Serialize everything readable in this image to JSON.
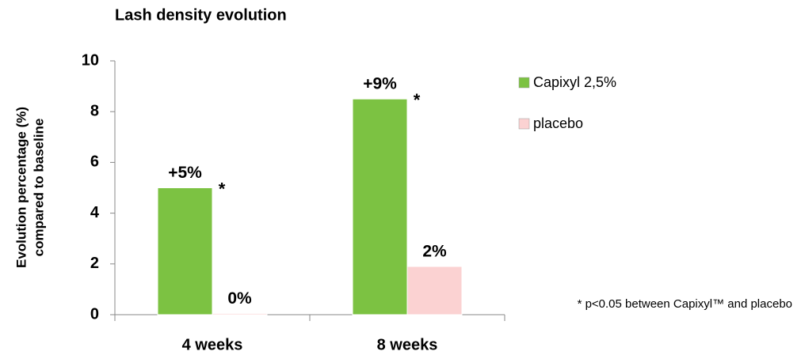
{
  "chart_data": {
    "type": "bar",
    "title": "Lash density evolution",
    "y_label": [
      "Evolution percentage (%)",
      "compared to baseline"
    ],
    "categories": [
      "4 weeks",
      "8 weeks"
    ],
    "series": [
      {
        "name": "Capixyl 2,5%",
        "color": "#7cc242",
        "values": [
          5,
          8.5
        ],
        "value_labels": [
          "+5%",
          "+9%"
        ],
        "annotations": [
          "*",
          "*"
        ]
      },
      {
        "name": "placebo",
        "color": "#fbd2d2",
        "values": [
          0.05,
          1.9
        ],
        "value_labels": [
          "0%",
          "2%"
        ]
      }
    ],
    "value_label_color": "#c0157a",
    "ylim": [
      0,
      10
    ],
    "yticks": [
      0,
      2,
      4,
      6,
      8,
      10
    ],
    "grid": false,
    "legend": "right",
    "footnote": "* p<0.05 between Capixyl™ and placebo"
  }
}
